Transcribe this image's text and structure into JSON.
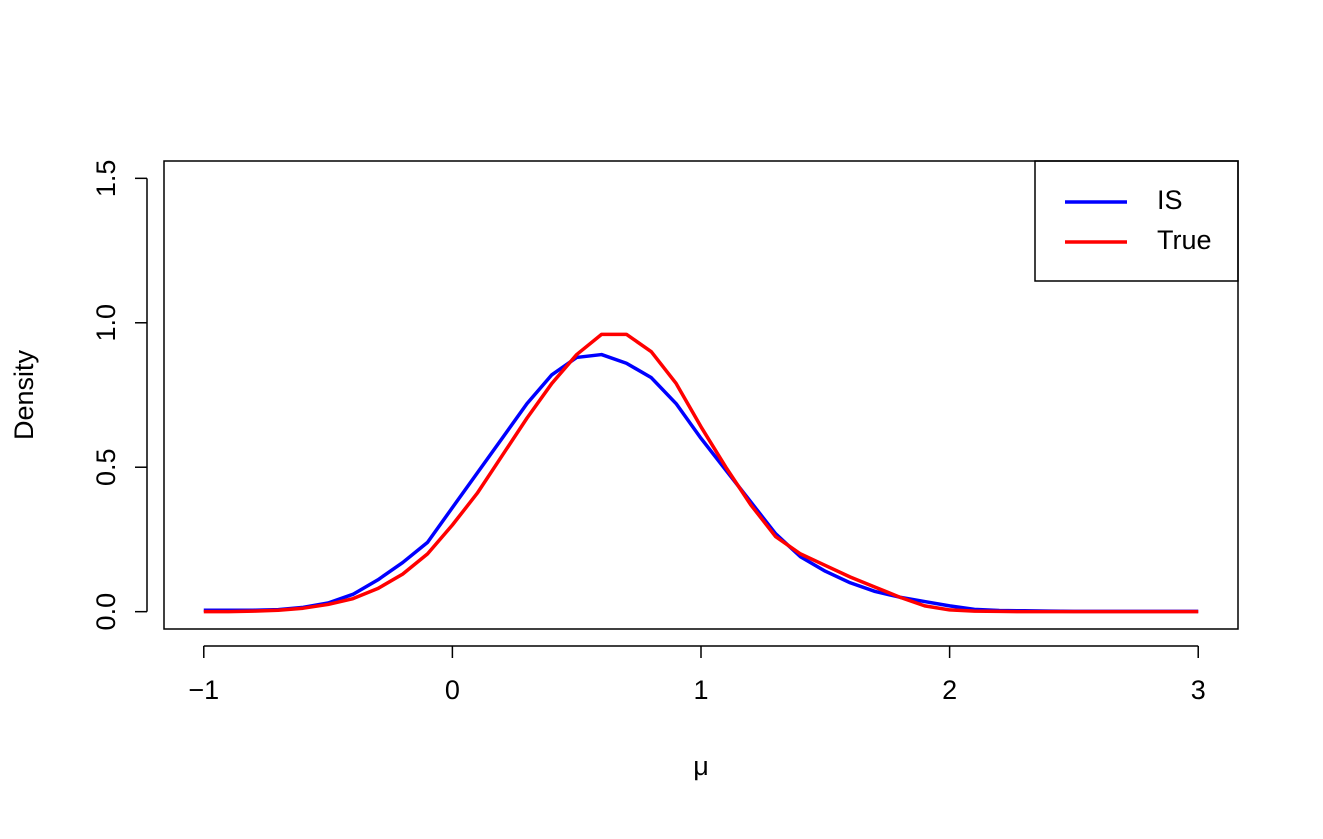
{
  "chart_data": {
    "type": "line",
    "xlabel": "μ",
    "ylabel": "Density",
    "x": [
      -1,
      -0.9,
      -0.8,
      -0.7,
      -0.6,
      -0.5,
      -0.4,
      -0.3,
      -0.2,
      -0.1,
      0,
      0.1,
      0.2,
      0.3,
      0.4,
      0.5,
      0.6,
      0.7,
      0.8,
      0.9,
      1,
      1.1,
      1.2,
      1.3,
      1.4,
      1.5,
      1.6,
      1.7,
      1.8,
      1.9,
      2,
      2.1,
      2.2,
      2.3,
      2.4,
      2.5,
      2.6,
      2.7,
      2.8,
      2.9,
      3
    ],
    "series": [
      {
        "name": "IS",
        "color": "#0000ff",
        "values": [
          0.005,
          0.005,
          0.005,
          0.007,
          0.015,
          0.03,
          0.06,
          0.11,
          0.17,
          0.24,
          0.36,
          0.48,
          0.6,
          0.72,
          0.82,
          0.88,
          0.89,
          0.86,
          0.81,
          0.72,
          0.6,
          0.49,
          0.38,
          0.27,
          0.19,
          0.14,
          0.1,
          0.07,
          0.05,
          0.035,
          0.02,
          0.008,
          0.004,
          0.003,
          0.002,
          0.001,
          0.001,
          0.001,
          0.001,
          0.001,
          0.001
        ]
      },
      {
        "name": "True",
        "color": "#ff0000",
        "values": [
          0,
          0,
          0.002,
          0.005,
          0.012,
          0.025,
          0.045,
          0.08,
          0.13,
          0.2,
          0.3,
          0.41,
          0.54,
          0.67,
          0.79,
          0.89,
          0.96,
          0.96,
          0.9,
          0.79,
          0.64,
          0.5,
          0.37,
          0.26,
          0.2,
          0.16,
          0.12,
          0.085,
          0.05,
          0.02,
          0.006,
          0.002,
          0.001,
          0,
          0,
          0,
          0,
          0,
          0,
          0,
          0
        ]
      }
    ],
    "xlim": [
      -1.16,
      3.16
    ],
    "ylim": [
      -0.06,
      1.56
    ],
    "xticks": [
      {
        "value": -1,
        "label": "−1"
      },
      0,
      1,
      2,
      3
    ],
    "yticks": [
      {
        "value": 0,
        "label": "0.0"
      },
      0.5,
      {
        "value": 1,
        "label": "1.0"
      },
      {
        "value": 1.5,
        "label": "1.5"
      }
    ],
    "legend": "top-right"
  }
}
